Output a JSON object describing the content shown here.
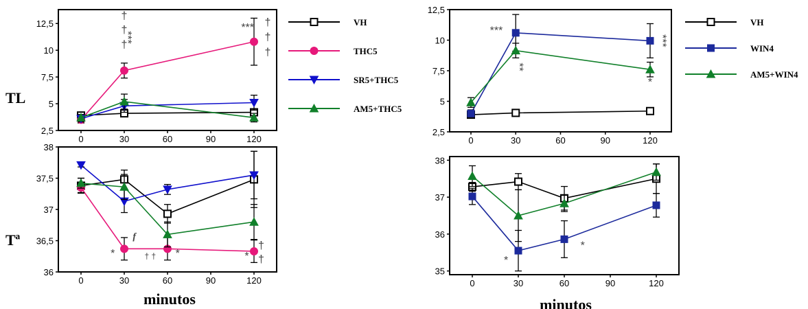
{
  "chart_data": [
    {
      "type": "line",
      "ylabel": "TL",
      "xlabel": "",
      "x": [
        0,
        30,
        60,
        90,
        120
      ],
      "ylim": [
        2.5,
        13.8
      ],
      "yticks": [
        "2,5",
        "5",
        "7,5",
        "10",
        "12,5"
      ],
      "legend": "right",
      "series": [
        {
          "name": "VH",
          "x": [
            0,
            30,
            120
          ],
          "values": [
            3.9,
            4.1,
            4.2
          ],
          "err": [
            0.3,
            0.3,
            0.3
          ],
          "color": "#000000",
          "marker": "square-open"
        },
        {
          "name": "THC5",
          "x": [
            0,
            30,
            120
          ],
          "values": [
            3.5,
            8.1,
            10.8
          ],
          "err": [
            0.3,
            0.7,
            2.2
          ],
          "color": "#e6197a",
          "marker": "circle"
        },
        {
          "name": "SR5+THC5",
          "x": [
            0,
            30,
            120
          ],
          "values": [
            3.6,
            4.8,
            5.1
          ],
          "err": [
            0.3,
            0.6,
            0.7
          ],
          "color": "#1010cc",
          "marker": "triangle-down"
        },
        {
          "name": "AM5+THC5",
          "x": [
            0,
            30,
            120
          ],
          "values": [
            3.7,
            5.2,
            3.7
          ],
          "err": [
            0.3,
            0.7,
            0.4
          ],
          "color": "#11802a",
          "marker": "triangle-up"
        }
      ],
      "annotations": [
        {
          "text": "***",
          "x": 30,
          "y": 11.2,
          "rotate": 90
        },
        {
          "text": "†",
          "x": 30,
          "y": 12.9
        },
        {
          "text": "†",
          "x": 30,
          "y": 11.6
        },
        {
          "text": "†",
          "x": 30,
          "y": 10.2
        },
        {
          "text": "***",
          "x": 120,
          "y": 11.8,
          "anchor": "end"
        },
        {
          "text": "†",
          "x": 120,
          "y": 12.3,
          "side": "right"
        },
        {
          "text": "†",
          "x": 120,
          "y": 10.9,
          "side": "right"
        },
        {
          "text": "†",
          "x": 120,
          "y": 9.5,
          "side": "right"
        }
      ]
    },
    {
      "type": "line",
      "ylabel": "Tª",
      "xlabel": "minutos",
      "x": [
        0,
        30,
        60,
        90,
        120
      ],
      "ylim": [
        36.0,
        38.0
      ],
      "yticks": [
        "36",
        "36,5",
        "37",
        "37,5",
        "38"
      ],
      "series": [
        {
          "name": "VH",
          "x": [
            0,
            30,
            60,
            120
          ],
          "values": [
            37.38,
            37.48,
            36.93,
            37.48
          ],
          "err": [
            0.12,
            0.15,
            0.15,
            0.45
          ],
          "color": "#000000",
          "marker": "square-open"
        },
        {
          "name": "THC5",
          "x": [
            0,
            30,
            60,
            120
          ],
          "values": [
            37.35,
            36.37,
            36.37,
            36.33
          ],
          "err": [
            0.08,
            0.18,
            0.18,
            0.18
          ],
          "color": "#e6197a",
          "marker": "circle"
        },
        {
          "name": "SR5+THC5",
          "x": [
            0,
            30,
            60,
            120
          ],
          "values": [
            37.71,
            37.13,
            37.32,
            37.55
          ],
          "err": [
            0.03,
            0.18,
            0.08,
            0.38
          ],
          "color": "#1010cc",
          "marker": "triangle-down"
        },
        {
          "name": "AM5+THC5",
          "x": [
            0,
            30,
            60,
            120
          ],
          "values": [
            37.42,
            37.36,
            36.6,
            36.8
          ],
          "err": [
            0.08,
            0.2,
            0.2,
            0.28
          ],
          "color": "#11802a",
          "marker": "triangle-up"
        }
      ],
      "annotations": [
        {
          "text": "*",
          "x": 22,
          "y": 36.24
        },
        {
          "text": "f",
          "x": 37,
          "y": 36.52,
          "italic": true
        },
        {
          "text": "† †",
          "x": 48,
          "y": 36.21,
          "small": true
        },
        {
          "text": "*",
          "x": 67,
          "y": 36.24
        },
        {
          "text": "*",
          "x": 115,
          "y": 36.2
        },
        {
          "text": "†",
          "x": 125,
          "y": 36.37
        },
        {
          "text": "†",
          "x": 125,
          "y": 36.15
        }
      ]
    },
    {
      "type": "line",
      "ylabel": "",
      "xlabel": "",
      "x": [
        0,
        30,
        60,
        90,
        120
      ],
      "ylim": [
        2.5,
        12.5
      ],
      "yticks": [
        "2,5",
        "5",
        "7,5",
        "10",
        "12,5"
      ],
      "legend": "right",
      "series": [
        {
          "name": "VH",
          "x": [
            0,
            30,
            120
          ],
          "values": [
            3.9,
            4.05,
            4.2
          ],
          "err": [
            0.2,
            0.2,
            0.2
          ],
          "color": "#000000",
          "marker": "square-open"
        },
        {
          "name": "WIN4",
          "x": [
            0,
            30,
            120
          ],
          "values": [
            4.0,
            10.6,
            9.95
          ],
          "err": [
            0.3,
            1.5,
            1.4
          ],
          "color": "#1c2a9c",
          "marker": "square"
        },
        {
          "name": "AM5+WIN4",
          "x": [
            0,
            30,
            120
          ],
          "values": [
            4.9,
            9.15,
            7.6
          ],
          "err": [
            0.4,
            0.6,
            0.6
          ],
          "color": "#11802a",
          "marker": "triangle-up"
        }
      ],
      "annotations": [
        {
          "text": "***",
          "x": 17,
          "y": 10.5
        },
        {
          "text": "**",
          "x": 30,
          "y": 7.8,
          "rotate": 90
        },
        {
          "text": "*",
          "x": 120,
          "y": 6.3
        },
        {
          "text": "***",
          "x": 126,
          "y": 9.95,
          "rotate": 90
        }
      ]
    },
    {
      "type": "line",
      "ylabel": "",
      "xlabel": "minutos",
      "x": [
        0,
        30,
        60,
        90,
        120
      ],
      "ylim": [
        34.9,
        38.1
      ],
      "yticks": [
        "35",
        "36",
        "37",
        "38"
      ],
      "series": [
        {
          "name": "VH",
          "x": [
            0,
            30,
            60,
            120
          ],
          "values": [
            37.28,
            37.42,
            36.97,
            37.5
          ],
          "err": [
            0.12,
            0.22,
            0.32,
            0.4
          ],
          "color": "#000000",
          "marker": "square-open"
        },
        {
          "name": "WIN4",
          "x": [
            0,
            30,
            60,
            120
          ],
          "values": [
            37.02,
            35.55,
            35.86,
            36.78
          ],
          "err": [
            0.22,
            0.55,
            0.5,
            0.32
          ],
          "color": "#1c2a9c",
          "marker": "square"
        },
        {
          "name": "AM5+WIN4",
          "x": [
            0,
            30,
            60,
            120
          ],
          "values": [
            37.57,
            36.5,
            36.83,
            37.68
          ],
          "err": [
            0.28,
            0.7,
            0.22,
            0.22
          ],
          "color": "#11802a",
          "marker": "triangle-up"
        }
      ],
      "annotations": [
        {
          "text": "*",
          "x": 22,
          "y": 35.2
        },
        {
          "text": "*",
          "x": 72,
          "y": 35.6
        }
      ]
    }
  ]
}
